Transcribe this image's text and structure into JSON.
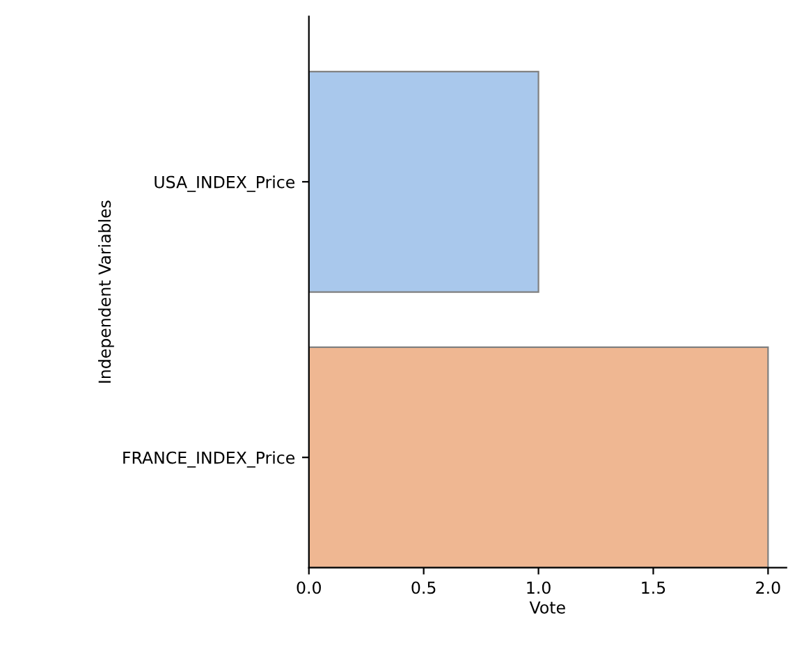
{
  "chart_data": {
    "type": "bar",
    "orientation": "horizontal",
    "categories": [
      "USA_INDEX_Price",
      "FRANCE_INDEX_Price"
    ],
    "values": [
      1.0,
      2.0
    ],
    "colors": [
      "#a9c8ec",
      "#efb792"
    ],
    "xlabel": "Vote",
    "ylabel": "Independent Variables",
    "xlim": [
      0,
      2.08
    ],
    "xticks": [
      {
        "value": 0,
        "label": "0.0"
      },
      {
        "value": 0.5,
        "label": "0.5"
      },
      {
        "value": 1,
        "label": "1.0"
      },
      {
        "value": 1.5,
        "label": "1.5"
      },
      {
        "value": 2,
        "label": "2.0"
      }
    ],
    "grid": false
  }
}
